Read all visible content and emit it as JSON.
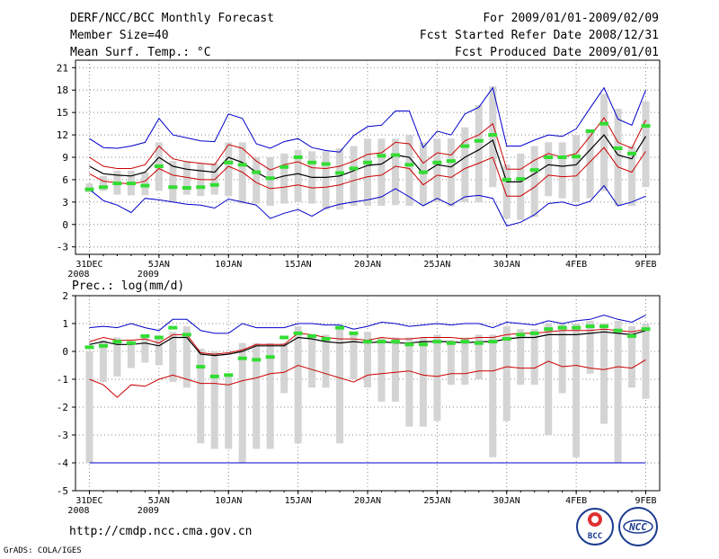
{
  "header": {
    "left": [
      "DERF/NCC/BCC Monthly Forecast",
      "Member Size=40",
      "Mean Surf. Temp.: °C"
    ],
    "right": [
      "For 2009/01/01-2009/02/09",
      "Fcst Started Refer Date 2008/12/31",
      "Fcst Produced Date 2009/01/01"
    ]
  },
  "precip_label": "Prec.: log(mm/d)",
  "footer": {
    "url": "http://cmdp.ncc.cma.gov.cn",
    "credit": "GrADS: COLA/IGES"
  },
  "logos": {
    "bcc_text": "BCC",
    "ncc_text": "NCC"
  },
  "colors": {
    "max": "#0000cc",
    "min": "#cc0000",
    "mean": "#000000",
    "bar": "#d4d4d4",
    "obs": "#33dd33",
    "grid": "#888888"
  },
  "x_ticks": [
    {
      "day": 0,
      "label": "31DEC",
      "sub": "2008"
    },
    {
      "day": 5,
      "label": "5JAN",
      "sub": "2009"
    },
    {
      "day": 10,
      "label": "10JAN",
      "sub": ""
    },
    {
      "day": 15,
      "label": "15JAN",
      "sub": ""
    },
    {
      "day": 20,
      "label": "20JAN",
      "sub": ""
    },
    {
      "day": 25,
      "label": "25JAN",
      "sub": ""
    },
    {
      "day": 30,
      "label": "30JAN",
      "sub": ""
    },
    {
      "day": 35,
      "label": "4FEB",
      "sub": ""
    },
    {
      "day": 40,
      "label": "9FEB",
      "sub": ""
    }
  ],
  "chart_data": [
    {
      "type": "line",
      "title": "Mean Surf. Temp.: °C",
      "x_unit": "day since 31DEC2008",
      "xlim": [
        -1,
        41
      ],
      "ylim": [
        -4,
        22
      ],
      "yticks": [
        -3,
        0,
        3,
        6,
        9,
        12,
        15,
        18,
        21
      ],
      "x": [
        0,
        1,
        2,
        3,
        4,
        5,
        6,
        7,
        8,
        9,
        10,
        11,
        12,
        13,
        14,
        15,
        16,
        17,
        18,
        19,
        20,
        21,
        22,
        23,
        24,
        25,
        26,
        27,
        28,
        29,
        30,
        31,
        32,
        33,
        34,
        35,
        36,
        37,
        38,
        39,
        40
      ],
      "series": [
        {
          "name": "max",
          "values": [
            11.5,
            10.3,
            10.2,
            10.5,
            11.0,
            14.2,
            12.0,
            11.6,
            11.2,
            11.1,
            14.8,
            14.2,
            10.8,
            10.2,
            11.1,
            11.5,
            10.3,
            9.9,
            9.7,
            11.9,
            13.1,
            13.3,
            15.2,
            15.2,
            10.3,
            12.5,
            12.0,
            14.8,
            15.7,
            18.3,
            10.5,
            10.5,
            11.3,
            12.0,
            11.8,
            12.8,
            15.6,
            18.3,
            14.1,
            13.3,
            18.0
          ]
        },
        {
          "name": "upper",
          "values": [
            9.0,
            7.8,
            7.5,
            7.5,
            8.0,
            10.5,
            8.8,
            8.4,
            8.2,
            8.0,
            10.7,
            10.2,
            8.5,
            7.3,
            8.0,
            8.4,
            7.6,
            7.5,
            7.8,
            8.5,
            9.4,
            9.6,
            11.0,
            10.8,
            8.2,
            9.6,
            9.3,
            11.2,
            12.0,
            13.5,
            7.4,
            7.4,
            8.6,
            9.5,
            9.0,
            9.5,
            11.8,
            14.3,
            11.0,
            10.2,
            14.0
          ]
        },
        {
          "name": "mean",
          "values": [
            7.8,
            6.8,
            6.6,
            6.5,
            7.0,
            9.0,
            7.8,
            7.4,
            7.2,
            7.0,
            9.0,
            8.3,
            7.0,
            6.0,
            6.5,
            6.8,
            6.3,
            6.3,
            6.5,
            7.2,
            7.9,
            8.1,
            9.3,
            9.0,
            6.8,
            8.0,
            7.7,
            9.0,
            10.0,
            11.3,
            5.7,
            5.7,
            6.8,
            8.0,
            7.8,
            8.0,
            10.0,
            12.0,
            9.3,
            8.8,
            11.8
          ]
        },
        {
          "name": "lower",
          "values": [
            6.8,
            5.8,
            5.6,
            5.4,
            5.8,
            7.5,
            6.6,
            6.3,
            6.0,
            6.0,
            7.8,
            7.0,
            5.6,
            4.8,
            5.0,
            5.3,
            4.9,
            5.0,
            5.3,
            5.9,
            6.4,
            6.6,
            7.8,
            7.5,
            5.3,
            6.6,
            6.3,
            7.5,
            8.2,
            9.0,
            3.8,
            3.8,
            5.0,
            6.6,
            6.4,
            6.5,
            8.4,
            10.3,
            7.7,
            7.0,
            9.8
          ]
        },
        {
          "name": "min",
          "values": [
            4.7,
            3.2,
            2.6,
            1.6,
            3.5,
            3.3,
            3.0,
            2.7,
            2.6,
            2.2,
            3.4,
            3.0,
            2.6,
            0.8,
            1.5,
            2.0,
            1.1,
            2.2,
            2.7,
            3.0,
            3.3,
            3.7,
            4.8,
            3.7,
            2.5,
            3.5,
            2.6,
            3.7,
            3.9,
            3.5,
            -0.2,
            0.3,
            1.3,
            2.8,
            3.0,
            2.5,
            3.1,
            5.2,
            2.5,
            3.0,
            3.8
          ]
        }
      ],
      "boxes": {
        "low": [
          4.3,
          4.5,
          4.0,
          3.9,
          3.9,
          4.5,
          3.0,
          4.0,
          3.8,
          4.0,
          3.8,
          2.8,
          2.8,
          2.5,
          2.8,
          3.0,
          2.8,
          2.0,
          2.0,
          2.5,
          2.5,
          2.5,
          2.6,
          2.5,
          2.6,
          3.0,
          2.4,
          3.0,
          3.0,
          5.0,
          0.8,
          0.6,
          1.0,
          3.8,
          3.5,
          3.0,
          3.5,
          4.5,
          2.5,
          2.5,
          5.0
        ],
        "high": [
          5.5,
          6.5,
          7.2,
          7.2,
          7.0,
          11.0,
          8.5,
          8.5,
          8.2,
          8.2,
          11.0,
          11.0,
          9.0,
          9.0,
          9.5,
          10.0,
          9.8,
          9.8,
          10.2,
          10.5,
          11.5,
          11.5,
          11.5,
          12.0,
          11.0,
          11.5,
          11.5,
          13.0,
          16.0,
          18.5,
          8.0,
          9.5,
          10.5,
          11.0,
          11.0,
          12.0,
          12.5,
          17.5,
          15.5,
          10.5,
          16.5
        ]
      },
      "observed": [
        4.7,
        5.0,
        5.5,
        5.5,
        5.2,
        7.8,
        5.0,
        4.9,
        5.0,
        5.3,
        8.3,
        8.0,
        7.0,
        6.2,
        7.7,
        9.0,
        8.3,
        8.1,
        6.9,
        7.5,
        8.3,
        9.2,
        9.3,
        8.0,
        7.0,
        8.3,
        8.5,
        10.5,
        11.2,
        12.0,
        6.0,
        6.1,
        7.3,
        9.0,
        9.0,
        9.1,
        12.5,
        13.5,
        10.2,
        9.5,
        13.2
      ],
      "xlabel": "",
      "ylabel": ""
    },
    {
      "type": "line",
      "title": "Prec.: log(mm/d)",
      "x_unit": "day since 31DEC2008",
      "xlim": [
        -1,
        41
      ],
      "ylim": [
        -5,
        2
      ],
      "yticks": [
        -5,
        -4,
        -3,
        -2,
        -1,
        0,
        1,
        2
      ],
      "x": [
        0,
        1,
        2,
        3,
        4,
        5,
        6,
        7,
        8,
        9,
        10,
        11,
        12,
        13,
        14,
        15,
        16,
        17,
        18,
        19,
        20,
        21,
        22,
        23,
        24,
        25,
        26,
        27,
        28,
        29,
        30,
        31,
        32,
        33,
        34,
        35,
        36,
        37,
        38,
        39,
        40
      ],
      "series": [
        {
          "name": "max",
          "values": [
            0.85,
            0.9,
            0.85,
            1.0,
            0.85,
            0.75,
            1.15,
            1.15,
            0.75,
            0.65,
            0.65,
            1.0,
            0.85,
            0.85,
            0.85,
            1.0,
            1.0,
            0.95,
            0.95,
            0.8,
            0.9,
            1.05,
            1.0,
            0.9,
            0.95,
            1.0,
            0.95,
            1.0,
            1.0,
            0.85,
            1.05,
            1.0,
            0.95,
            1.1,
            1.0,
            1.1,
            1.15,
            1.3,
            1.15,
            1.05,
            1.3
          ]
        },
        {
          "name": "upper",
          "values": [
            0.35,
            0.5,
            0.4,
            0.4,
            0.45,
            0.3,
            0.6,
            0.6,
            -0.05,
            -0.1,
            -0.05,
            0.05,
            0.25,
            0.25,
            0.25,
            0.65,
            0.6,
            0.5,
            0.45,
            0.45,
            0.4,
            0.5,
            0.45,
            0.45,
            0.5,
            0.5,
            0.5,
            0.45,
            0.5,
            0.5,
            0.6,
            0.65,
            0.65,
            0.7,
            0.75,
            0.75,
            0.75,
            0.8,
            0.75,
            0.7,
            0.8
          ]
        },
        {
          "name": "mean",
          "values": [
            0.25,
            0.35,
            0.25,
            0.25,
            0.3,
            0.2,
            0.5,
            0.5,
            -0.1,
            -0.15,
            -0.1,
            0.0,
            0.2,
            0.2,
            0.2,
            0.5,
            0.45,
            0.35,
            0.3,
            0.35,
            0.3,
            0.35,
            0.3,
            0.3,
            0.35,
            0.35,
            0.35,
            0.3,
            0.35,
            0.35,
            0.45,
            0.5,
            0.5,
            0.6,
            0.6,
            0.6,
            0.65,
            0.7,
            0.65,
            0.6,
            0.75
          ]
        },
        {
          "name": "lower",
          "values": [
            -1.0,
            -1.2,
            -1.65,
            -1.2,
            -1.25,
            -1.0,
            -0.85,
            -1.0,
            -1.15,
            -1.15,
            -1.2,
            -1.05,
            -0.95,
            -0.8,
            -0.75,
            -0.5,
            -0.65,
            -0.8,
            -0.95,
            -1.1,
            -0.85,
            -0.8,
            -0.75,
            -0.7,
            -0.85,
            -0.9,
            -0.8,
            -0.8,
            -0.7,
            -0.7,
            -0.55,
            -0.6,
            -0.6,
            -0.35,
            -0.55,
            -0.5,
            -0.6,
            -0.65,
            -0.55,
            -0.6,
            -0.3
          ]
        },
        {
          "name": "min",
          "values": [
            -4,
            -4,
            -4,
            -4,
            -4,
            -4,
            -4,
            -4,
            -4,
            -4,
            -4,
            -4,
            -4,
            -4,
            -4,
            -4,
            -4,
            -4,
            -4,
            -4,
            -4,
            -4,
            -4,
            -4,
            -4,
            -4,
            -4,
            -4,
            -4,
            -4,
            -4,
            -4,
            -4,
            -4,
            -4,
            -4,
            -4,
            -4,
            -4,
            -4,
            -4
          ]
        }
      ],
      "boxes": {
        "low": [
          -4.0,
          -1.1,
          -0.9,
          -0.6,
          -0.4,
          -0.5,
          -1.1,
          -1.3,
          -3.3,
          -3.5,
          -3.5,
          -4.0,
          -3.5,
          -3.5,
          -1.5,
          -3.3,
          -1.3,
          -1.3,
          -3.3,
          -1.0,
          -1.3,
          -1.8,
          -1.8,
          -2.7,
          -2.7,
          -2.5,
          -1.2,
          -1.2,
          -1.0,
          -3.8,
          -2.5,
          -1.2,
          -1.2,
          -3.0,
          -1.5,
          -3.8,
          -0.8,
          -2.6,
          -4.0,
          -1.3,
          -1.7
        ],
        "high": [
          0.0,
          0.4,
          0.5,
          0.3,
          0.5,
          0.5,
          0.7,
          0.9,
          0.1,
          0.0,
          -0.8,
          0.3,
          0.3,
          0.3,
          0.3,
          0.9,
          0.6,
          0.6,
          0.8,
          0.6,
          0.7,
          0.5,
          0.5,
          0.5,
          0.5,
          0.6,
          0.4,
          0.5,
          0.6,
          0.6,
          0.9,
          0.8,
          0.8,
          1.0,
          1.0,
          1.0,
          1.1,
          1.0,
          1.1,
          0.9,
          1.0
        ]
      },
      "observed": [
        0.15,
        0.2,
        0.35,
        0.3,
        0.55,
        0.5,
        0.85,
        0.6,
        -0.55,
        -0.9,
        -0.85,
        -0.25,
        -0.3,
        -0.2,
        0.5,
        0.65,
        0.55,
        0.45,
        0.85,
        0.65,
        0.35,
        0.35,
        0.35,
        0.25,
        0.25,
        0.35,
        0.3,
        0.35,
        0.3,
        0.35,
        0.45,
        0.6,
        0.65,
        0.8,
        0.85,
        0.85,
        0.9,
        0.9,
        0.75,
        0.55,
        0.8
      ],
      "xlabel": "",
      "ylabel": ""
    }
  ]
}
